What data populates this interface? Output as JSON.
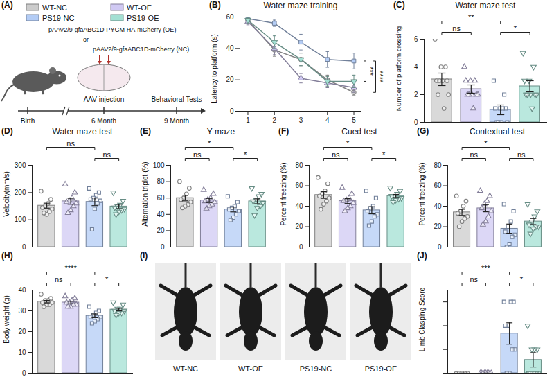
{
  "groups": [
    {
      "name": "WT-NC",
      "color": "#cccccc",
      "marker": "circle"
    },
    {
      "name": "WT-OE",
      "color": "#d0c9f3",
      "marker": "triangle"
    },
    {
      "name": "PS19-NC",
      "color": "#b3ccf5",
      "marker": "square"
    },
    {
      "name": "PS19-OE",
      "color": "#a3e0d3",
      "marker": "triangle-down"
    }
  ],
  "schematic": {
    "panel_label": "(A)",
    "constructs": [
      "pAAV2/9-gfaABC1D-PYGM-HA-mCherry (OE)",
      "or",
      "pAAV2/9-gfaABC1D-mCherry (NC)"
    ],
    "timeline": [
      "Birth",
      "6 Month",
      "9 Month"
    ],
    "events": [
      "AAV injection",
      "Behavioral Tests"
    ]
  },
  "chart_data": [
    {
      "panel_label": "(B)",
      "type": "line",
      "title": "Water maze training",
      "y_label": "Latency to platform (s)",
      "x": [
        1,
        2,
        3,
        4,
        5
      ],
      "xlim": [
        0.7,
        5.3
      ],
      "xticks": [
        1,
        2,
        3,
        4,
        5
      ],
      "ylim": [
        0,
        60
      ],
      "yticks": [
        0,
        20,
        40,
        60
      ],
      "series": [
        {
          "name": "WT-NC",
          "values": [
            58,
            39,
            33,
            20,
            12
          ],
          "errors": [
            1.5,
            4,
            4,
            3,
            2
          ]
        },
        {
          "name": "WT-OE",
          "values": [
            57,
            40,
            21,
            18,
            15
          ],
          "errors": [
            2,
            4,
            3,
            3,
            3
          ]
        },
        {
          "name": "PS19-NC",
          "values": [
            59,
            56,
            44,
            33,
            32
          ],
          "errors": [
            1,
            2,
            5,
            5,
            5
          ]
        },
        {
          "name": "PS19-OE",
          "values": [
            58,
            44,
            33,
            19,
            19
          ],
          "errors": [
            1.5,
            4,
            4,
            3,
            4
          ]
        }
      ],
      "annotations": [
        {
          "groups": [
            "PS19-NC",
            "PS19-OE"
          ],
          "label": "***"
        },
        {
          "groups": [
            "PS19-NC",
            "WT-NC"
          ],
          "label": "****"
        }
      ]
    },
    {
      "panel_label": "(C)",
      "type": "bar",
      "title": "Water maze test",
      "y_label": "Number of platform crossing",
      "ylim": [
        0,
        6
      ],
      "yticks": [
        0,
        2,
        4,
        6
      ],
      "series": [
        {
          "name": "WT-NC",
          "values": [
            3.1
          ],
          "errors": [
            0.45
          ],
          "points": [
            6,
            4,
            4,
            3,
            3,
            3,
            2,
            2,
            1,
            3
          ]
        },
        {
          "name": "WT-OE",
          "values": [
            2.4
          ],
          "errors": [
            0.3
          ],
          "points": [
            4,
            3,
            3,
            3,
            2,
            2,
            2,
            2,
            1,
            2
          ]
        },
        {
          "name": "PS19-NC",
          "values": [
            0.9
          ],
          "errors": [
            0.35
          ],
          "points": [
            3,
            2,
            1,
            1,
            1,
            0,
            0,
            0,
            1,
            0
          ]
        },
        {
          "name": "PS19-OE",
          "values": [
            2.6
          ],
          "errors": [
            0.4
          ],
          "points": [
            5,
            4,
            3,
            3,
            2,
            2,
            2,
            2,
            1,
            2
          ]
        }
      ],
      "annotations": [
        {
          "groups": [
            "WT-NC",
            "WT-OE"
          ],
          "label": "ns"
        },
        {
          "groups": [
            "WT-NC",
            "PS19-NC"
          ],
          "label": "**"
        },
        {
          "groups": [
            "PS19-NC",
            "PS19-OE"
          ],
          "label": "*"
        }
      ]
    },
    {
      "panel_label": "(D)",
      "type": "bar",
      "title": "Water maze test",
      "y_label": "Velocity(mm/s)",
      "ylim": [
        0,
        300
      ],
      "yticks": [
        0,
        100,
        200,
        300
      ],
      "series": [
        {
          "name": "WT-NC",
          "values": [
            152
          ],
          "errors": [
            9
          ],
          "points": [
            205,
            175,
            160,
            150,
            145,
            140,
            130,
            120,
            125
          ]
        },
        {
          "name": "WT-OE",
          "values": [
            168
          ],
          "errors": [
            11
          ],
          "points": [
            230,
            200,
            180,
            170,
            165,
            160,
            150,
            135,
            125
          ]
        },
        {
          "name": "PS19-NC",
          "values": [
            166
          ],
          "errors": [
            14
          ],
          "points": [
            215,
            200,
            190,
            180,
            175,
            170,
            160,
            140,
            65
          ]
        },
        {
          "name": "PS19-OE",
          "values": [
            149
          ],
          "errors": [
            8
          ],
          "points": [
            200,
            170,
            155,
            150,
            145,
            140,
            135,
            130,
            120
          ]
        }
      ],
      "annotations": [
        {
          "groups": [
            "WT-NC",
            "PS19-NC"
          ],
          "label": "ns"
        },
        {
          "groups": [
            "PS19-NC",
            "PS19-OE"
          ],
          "label": "ns"
        }
      ]
    },
    {
      "panel_label": "(E)",
      "type": "bar",
      "title": "Y maze",
      "y_label": "Alternation triplet (%)",
      "ylim": [
        0,
        100
      ],
      "yticks": [
        0,
        20,
        40,
        60,
        80,
        100
      ],
      "series": [
        {
          "name": "WT-NC",
          "values": [
            60
          ],
          "errors": [
            3.5
          ],
          "points": [
            80,
            72,
            65,
            60,
            58,
            55,
            52,
            50,
            48
          ]
        },
        {
          "name": "WT-OE",
          "values": [
            57
          ],
          "errors": [
            2.5
          ],
          "points": [
            70,
            65,
            60,
            58,
            56,
            55,
            52,
            50,
            47
          ]
        },
        {
          "name": "PS19-NC",
          "values": [
            46
          ],
          "errors": [
            3
          ],
          "points": [
            62,
            55,
            50,
            48,
            46,
            44,
            40,
            36,
            33
          ]
        },
        {
          "name": "PS19-OE",
          "values": [
            56
          ],
          "errors": [
            3
          ],
          "points": [
            72,
            65,
            62,
            58,
            56,
            54,
            50,
            48,
            39
          ]
        }
      ],
      "annotations": [
        {
          "groups": [
            "WT-NC",
            "WT-OE"
          ],
          "label": "ns"
        },
        {
          "groups": [
            "WT-NC",
            "PS19-NC"
          ],
          "label": "*"
        },
        {
          "groups": [
            "PS19-NC",
            "PS19-OE"
          ],
          "label": "*"
        }
      ]
    },
    {
      "panel_label": "(F)",
      "type": "bar",
      "title": "Cued test",
      "y_label": "Percent freezing (%)",
      "ylim": [
        0,
        80
      ],
      "yticks": [
        0,
        20,
        40,
        60,
        80
      ],
      "series": [
        {
          "name": "WT-NC",
          "values": [
            51
          ],
          "errors": [
            3.3
          ],
          "points": [
            68,
            62,
            55,
            52,
            50,
            48,
            45,
            42,
            37
          ]
        },
        {
          "name": "WT-OE",
          "values": [
            45
          ],
          "errors": [
            2.4
          ],
          "points": [
            58,
            52,
            48,
            46,
            45,
            43,
            40,
            38,
            35
          ]
        },
        {
          "name": "PS19-NC",
          "values": [
            36
          ],
          "errors": [
            3.5
          ],
          "points": [
            55,
            48,
            40,
            38,
            35,
            32,
            30,
            25,
            21
          ]
        },
        {
          "name": "PS19-OE",
          "values": [
            50
          ],
          "errors": [
            1.5
          ],
          "points": [
            58,
            55,
            52,
            50,
            50,
            48,
            47,
            46,
            44
          ]
        }
      ],
      "annotations": [
        {
          "groups": [
            "WT-NC",
            "WT-OE"
          ],
          "label": "ns"
        },
        {
          "groups": [
            "WT-NC",
            "PS19-NC"
          ],
          "label": "*"
        },
        {
          "groups": [
            "PS19-NC",
            "PS19-OE"
          ],
          "label": "*"
        }
      ]
    },
    {
      "panel_label": "(G)",
      "type": "bar",
      "title": "Contextual test",
      "y_label": "Percent freezing (%)",
      "ylim": [
        0,
        80
      ],
      "yticks": [
        0,
        20,
        40,
        60,
        80
      ],
      "series": [
        {
          "name": "WT-NC",
          "values": [
            34
          ],
          "errors": [
            3
          ],
          "points": [
            50,
            45,
            40,
            35,
            33,
            30,
            28,
            25,
            20
          ]
        },
        {
          "name": "WT-OE",
          "values": [
            38
          ],
          "errors": [
            3.5
          ],
          "points": [
            55,
            50,
            45,
            42,
            38,
            35,
            30,
            25,
            22
          ]
        },
        {
          "name": "PS19-NC",
          "values": [
            18
          ],
          "errors": [
            4.5
          ],
          "points": [
            42,
            35,
            25,
            20,
            15,
            12,
            10,
            3,
            0
          ]
        },
        {
          "name": "PS19-OE",
          "values": [
            25
          ],
          "errors": [
            3
          ],
          "points": [
            42,
            35,
            30,
            25,
            22,
            20,
            20,
            18,
            13
          ]
        }
      ],
      "annotations": [
        {
          "groups": [
            "WT-NC",
            "WT-OE"
          ],
          "label": "ns"
        },
        {
          "groups": [
            "WT-NC",
            "PS19-NC"
          ],
          "label": "*"
        },
        {
          "groups": [
            "PS19-NC",
            "PS19-OE"
          ],
          "label": "ns"
        }
      ]
    },
    {
      "panel_label": "(H)",
      "type": "bar",
      "y_label": "Body weight (g)",
      "ylim": [
        0,
        40
      ],
      "yticks": [
        0,
        10,
        20,
        30,
        40
      ],
      "series": [
        {
          "name": "WT-NC",
          "values": [
            34.4
          ],
          "errors": [
            0.6
          ],
          "points": [
            38,
            36,
            35,
            35,
            34,
            34,
            33,
            33,
            32
          ]
        },
        {
          "name": "WT-OE",
          "values": [
            34
          ],
          "errors": [
            0.6
          ],
          "points": [
            37,
            36,
            35,
            34,
            34,
            33,
            33,
            32,
            32
          ]
        },
        {
          "name": "PS19-NC",
          "values": [
            27.6
          ],
          "errors": [
            0.9
          ],
          "points": [
            32,
            30,
            29,
            28,
            27,
            27,
            26,
            25,
            24
          ]
        },
        {
          "name": "PS19-OE",
          "values": [
            30.6
          ],
          "errors": [
            0.6
          ],
          "points": [
            34,
            33,
            31,
            31,
            30,
            30,
            29,
            29,
            28
          ]
        }
      ],
      "annotations": [
        {
          "groups": [
            "WT-NC",
            "WT-OE"
          ],
          "label": "ns"
        },
        {
          "groups": [
            "WT-NC",
            "PS19-NC"
          ],
          "label": "****"
        },
        {
          "groups": [
            "PS19-NC",
            "PS19-OE"
          ],
          "label": "*"
        }
      ]
    },
    {
      "panel_label": "(J)",
      "type": "bar",
      "y_label": "Limb Clasping Score",
      "ylim": [
        0,
        3.5
      ],
      "yticks": [
        0,
        1,
        2,
        3
      ],
      "tick_labels": false,
      "series": [
        {
          "name": "WT-NC",
          "values": [
            0
          ],
          "errors": [
            0
          ],
          "points": [
            0,
            0,
            0,
            0,
            0,
            0,
            0,
            0,
            0
          ]
        },
        {
          "name": "WT-OE",
          "values": [
            0
          ],
          "errors": [
            0
          ],
          "points": [
            0,
            0,
            0,
            0,
            0,
            0,
            0,
            0,
            0
          ]
        },
        {
          "name": "PS19-NC",
          "values": [
            1.67
          ],
          "errors": [
            0.45
          ],
          "points": [
            3,
            3,
            3,
            2,
            2,
            1,
            1,
            0,
            0
          ]
        },
        {
          "name": "PS19-OE",
          "values": [
            0.56
          ],
          "errors": [
            0.3
          ],
          "points": [
            2,
            1,
            1,
            1,
            0,
            0,
            0,
            0,
            0
          ]
        }
      ],
      "annotations": [
        {
          "groups": [
            "WT-NC",
            "WT-OE"
          ],
          "label": "ns"
        },
        {
          "groups": [
            "WT-NC",
            "PS19-NC"
          ],
          "label": "***"
        },
        {
          "groups": [
            "PS19-NC",
            "PS19-OE"
          ],
          "label": "*"
        }
      ]
    }
  ],
  "photos": {
    "panel_label": "(I)",
    "labels": [
      "WT-NC",
      "WT-OE",
      "PS19-NC",
      "PS19-OE"
    ]
  }
}
